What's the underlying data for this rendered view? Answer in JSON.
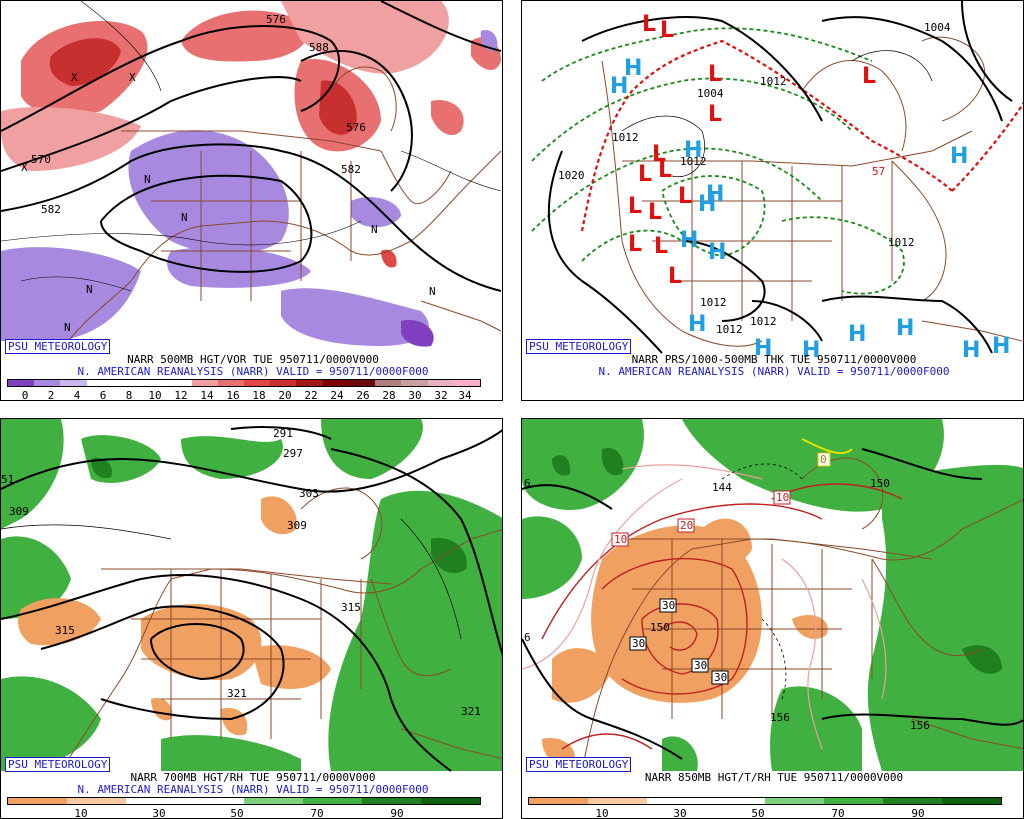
{
  "panels": [
    {
      "badge": "PSU METEOROLOGY",
      "caption1": "NARR 500MB HGT/VOR TUE 950711/0000V000",
      "caption2": "N. AMERICAN REANALYSIS (NARR) VALID = 950711/0000F000",
      "colorbar_ticks": [
        "0",
        "2",
        "4",
        "6",
        "8",
        "10",
        "12",
        "14",
        "16",
        "18",
        "20",
        "22",
        "24",
        "26",
        "28",
        "30",
        "32",
        "34"
      ],
      "contour_labels": [
        "570",
        "582",
        "588",
        "576",
        "576",
        "582",
        "X",
        "X",
        "X",
        "N",
        "N",
        "N",
        "N",
        "N",
        "N"
      ]
    },
    {
      "badge": "PSU METEOROLOGY",
      "caption1": "NARR PRS/1000-500MB THK TUE 950711/0000V000",
      "caption2": "N. AMERICAN REANALYSIS (NARR) VALID = 950711/0000F000",
      "contour_labels": [
        "1020",
        "1012",
        "1004",
        "1012",
        "1012",
        "1012",
        "1012",
        "1012",
        "1012",
        "1004",
        "57"
      ],
      "high_symbol": "H",
      "low_symbol": "L"
    },
    {
      "badge": "PSU METEOROLOGY",
      "caption1": "NARR 700MB HGT/RH TUE 950711/0000V000",
      "caption2": "N. AMERICAN REANALYSIS (NARR) VALID = 950711/0000F000",
      "colorbar_ticks": [
        "10",
        "30",
        "50",
        "70",
        "90"
      ],
      "contour_labels": [
        "309",
        "315",
        "321",
        "315",
        "309",
        "303",
        "297",
        "291",
        "321",
        "51"
      ]
    },
    {
      "badge": "PSU METEOROLOGY",
      "caption1": "NARR 850MB HGT/T/RH TUE 950711/0000V000",
      "colorbar_ticks": [
        "10",
        "30",
        "50",
        "70",
        "90"
      ],
      "contour_labels": [
        "10",
        "10",
        "20",
        "30",
        "30",
        "30",
        "30",
        "150",
        "156",
        "156",
        "144",
        "150",
        "0",
        "6",
        "6"
      ]
    }
  ],
  "colors": {
    "badge": "#1a1ad0",
    "caption2": "#1a1ad0",
    "vor_bar": [
      "#7f3fbf",
      "#a78ae0",
      "#c9b8ee",
      "#ffffff",
      "#ffffff",
      "#ffffff",
      "#ffffff",
      "#f0a0a0",
      "#e87070",
      "#e04848",
      "#c83030",
      "#a01818",
      "#800000",
      "#6a0a0a",
      "#b08080",
      "#c8a0a0",
      "#e8b0c0",
      "#ffb0c8"
    ],
    "rh_bar": [
      "#f0a060",
      "#f8c8a0",
      "#ffffff",
      "#ffffff",
      "#7fd07f",
      "#40b040",
      "#208020",
      "#106010"
    ],
    "map_lines": "#8b4a2b",
    "high": "#20a0e0",
    "low": "#e01010",
    "green_dash": "#1a8a1a",
    "red_dash": "#e01010"
  }
}
